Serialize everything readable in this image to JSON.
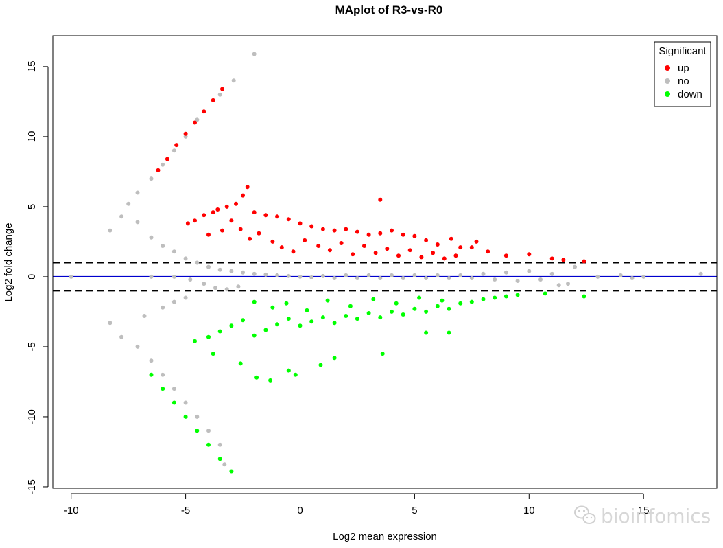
{
  "chart_data": {
    "type": "scatter",
    "title": "MAplot of R3-vs-R0",
    "xlabel": "Log2 mean expression",
    "ylabel": "Log2 fold change",
    "xlim": [
      -10.8,
      18.2
    ],
    "ylim": [
      -15.1,
      17.2
    ],
    "xticks": [
      -10,
      -5,
      0,
      5,
      10,
      15
    ],
    "yticks": [
      -15,
      -10,
      -5,
      0,
      5,
      10,
      15
    ],
    "xtick_labels": [
      "-10",
      "-5",
      "0",
      "5",
      "10",
      "15"
    ],
    "ytick_labels": [
      "-15",
      "-10",
      "-5",
      "0",
      "5",
      "10",
      "15"
    ],
    "grid": false,
    "legend": {
      "title": "Significant",
      "position": "top-right",
      "entries": [
        {
          "label": "up",
          "color": "#ff0000"
        },
        {
          "label": "no",
          "color": "#bebebe"
        },
        {
          "label": "down",
          "color": "#00ff00"
        }
      ]
    },
    "reference_lines": [
      {
        "y": 0,
        "color": "#0000cd",
        "style": "solid"
      },
      {
        "y": 1,
        "color": "#000000",
        "style": "dashed"
      },
      {
        "y": -1,
        "color": "#000000",
        "style": "dashed"
      }
    ],
    "series": [
      {
        "name": "up",
        "color": "#ff0000",
        "points": [
          [
            -2.3,
            6.4
          ],
          [
            3.5,
            5.5
          ],
          [
            -2.5,
            5.8
          ],
          [
            -2.0,
            4.6
          ],
          [
            -1.5,
            4.4
          ],
          [
            -1.0,
            4.3
          ],
          [
            -0.5,
            4.1
          ],
          [
            0.0,
            3.8
          ],
          [
            0.5,
            3.6
          ],
          [
            1.0,
            3.4
          ],
          [
            1.5,
            3.3
          ],
          [
            2.0,
            3.4
          ],
          [
            2.5,
            3.2
          ],
          [
            3.0,
            3.0
          ],
          [
            3.5,
            3.1
          ],
          [
            4.0,
            3.3
          ],
          [
            4.5,
            3.0
          ],
          [
            5.0,
            2.9
          ],
          [
            5.5,
            2.6
          ],
          [
            6.0,
            2.3
          ],
          [
            6.6,
            2.7
          ],
          [
            7.0,
            2.1
          ],
          [
            7.5,
            2.1
          ],
          [
            7.7,
            2.5
          ],
          [
            8.2,
            1.8
          ],
          [
            9.0,
            1.5
          ],
          [
            10.0,
            1.6
          ],
          [
            11.0,
            1.3
          ],
          [
            11.5,
            1.2
          ],
          [
            12.4,
            1.1
          ],
          [
            -1.2,
            2.5
          ],
          [
            -0.8,
            2.1
          ],
          [
            -0.3,
            1.8
          ],
          [
            0.2,
            2.6
          ],
          [
            0.8,
            2.2
          ],
          [
            1.3,
            1.9
          ],
          [
            1.8,
            2.4
          ],
          [
            2.3,
            1.6
          ],
          [
            2.8,
            2.2
          ],
          [
            3.3,
            1.7
          ],
          [
            3.8,
            2.0
          ],
          [
            4.3,
            1.5
          ],
          [
            4.8,
            1.9
          ],
          [
            5.3,
            1.4
          ],
          [
            5.8,
            1.7
          ],
          [
            6.3,
            1.3
          ],
          [
            6.8,
            1.5
          ],
          [
            -1.8,
            3.1
          ],
          [
            -2.2,
            2.7
          ],
          [
            -2.6,
            3.4
          ],
          [
            -3.0,
            4.0
          ],
          [
            -3.4,
            3.3
          ],
          [
            -4.0,
            3.0
          ],
          [
            -4.6,
            4.0
          ],
          [
            -4.2,
            4.4
          ],
          [
            -3.8,
            4.6
          ],
          [
            -3.6,
            4.8
          ],
          [
            -3.2,
            5.0
          ],
          [
            -2.8,
            5.2
          ],
          [
            -4.9,
            3.8
          ],
          [
            -6.2,
            7.6
          ],
          [
            -5.8,
            8.4
          ],
          [
            -5.4,
            9.4
          ],
          [
            -5.0,
            10.2
          ],
          [
            -4.6,
            11.0
          ],
          [
            -4.2,
            11.8
          ],
          [
            -3.8,
            12.6
          ],
          [
            -3.4,
            13.4
          ]
        ]
      },
      {
        "name": "no",
        "color": "#bebebe",
        "points": [
          [
            -2.0,
            15.9
          ],
          [
            -2.9,
            14.0
          ],
          [
            -3.5,
            13.0
          ],
          [
            -4.5,
            11.2
          ],
          [
            -5.0,
            10.0
          ],
          [
            -5.5,
            9.0
          ],
          [
            -6.0,
            8.0
          ],
          [
            -6.5,
            7.0
          ],
          [
            -7.1,
            6.0
          ],
          [
            -7.5,
            5.2
          ],
          [
            -8.3,
            3.3
          ],
          [
            -7.8,
            4.3
          ],
          [
            -7.1,
            3.9
          ],
          [
            -6.5,
            2.8
          ],
          [
            -6.0,
            2.2
          ],
          [
            -5.5,
            1.8
          ],
          [
            -5.0,
            1.3
          ],
          [
            -4.5,
            1.0
          ],
          [
            -4.0,
            0.7
          ],
          [
            -3.5,
            0.5
          ],
          [
            -3.0,
            0.4
          ],
          [
            -2.5,
            0.3
          ],
          [
            -2.0,
            0.2
          ],
          [
            -1.5,
            0.15
          ],
          [
            -1.0,
            0.1
          ],
          [
            -0.5,
            0.05
          ],
          [
            0.0,
            0.0
          ],
          [
            0.5,
            -0.05
          ],
          [
            1.0,
            0.05
          ],
          [
            1.5,
            -0.1
          ],
          [
            2.0,
            0.1
          ],
          [
            2.5,
            -0.1
          ],
          [
            3.0,
            0.1
          ],
          [
            3.5,
            -0.1
          ],
          [
            4.0,
            0.1
          ],
          [
            4.5,
            -0.1
          ],
          [
            5.0,
            0.1
          ],
          [
            5.5,
            -0.1
          ],
          [
            6.0,
            0.1
          ],
          [
            6.5,
            -0.1
          ],
          [
            7.0,
            0.1
          ],
          [
            7.5,
            -0.1
          ],
          [
            8.0,
            0.2
          ],
          [
            8.5,
            -0.2
          ],
          [
            9.0,
            0.3
          ],
          [
            9.5,
            -0.3
          ],
          [
            10.0,
            0.4
          ],
          [
            10.5,
            -0.2
          ],
          [
            11.0,
            0.2
          ],
          [
            11.3,
            -0.6
          ],
          [
            11.7,
            -0.5
          ],
          [
            12.0,
            0.7
          ],
          [
            13.0,
            0.0
          ],
          [
            14.0,
            0.1
          ],
          [
            14.5,
            -0.1
          ],
          [
            15.0,
            0.0
          ],
          [
            17.5,
            0.2
          ],
          [
            -10.0,
            0.0
          ],
          [
            -6.5,
            0.0
          ],
          [
            -5.5,
            0.0
          ],
          [
            -4.8,
            -0.2
          ],
          [
            -4.2,
            -0.5
          ],
          [
            -3.7,
            -0.8
          ],
          [
            -3.2,
            -0.9
          ],
          [
            -2.7,
            -0.7
          ],
          [
            -8.3,
            -3.3
          ],
          [
            -7.8,
            -4.3
          ],
          [
            -7.1,
            -5.0
          ],
          [
            -6.5,
            -6.0
          ],
          [
            -6.0,
            -7.0
          ],
          [
            -5.5,
            -8.0
          ],
          [
            -5.0,
            -9.0
          ],
          [
            -4.5,
            -10.0
          ],
          [
            -4.0,
            -11.0
          ],
          [
            -3.5,
            -12.0
          ],
          [
            -3.3,
            -13.4
          ],
          [
            -6.8,
            -2.8
          ],
          [
            -6.0,
            -2.2
          ],
          [
            -5.5,
            -1.8
          ],
          [
            -5.0,
            -1.5
          ]
        ]
      },
      {
        "name": "down",
        "color": "#00ff00",
        "points": [
          [
            -1.3,
            -7.4
          ],
          [
            -1.9,
            -7.2
          ],
          [
            -0.2,
            -7.0
          ],
          [
            -0.5,
            -6.7
          ],
          [
            0.9,
            -6.3
          ],
          [
            1.5,
            -5.8
          ],
          [
            3.6,
            -5.5
          ],
          [
            5.5,
            -4.0
          ],
          [
            6.5,
            -4.0
          ],
          [
            -2.6,
            -6.2
          ],
          [
            -3.8,
            -5.5
          ],
          [
            -4.6,
            -4.6
          ],
          [
            -4.0,
            -4.3
          ],
          [
            -3.5,
            -3.9
          ],
          [
            -3.0,
            -3.5
          ],
          [
            -2.5,
            -3.1
          ],
          [
            -2.0,
            -4.2
          ],
          [
            -1.5,
            -3.8
          ],
          [
            -1.0,
            -3.4
          ],
          [
            -0.5,
            -3.0
          ],
          [
            0.0,
            -3.5
          ],
          [
            0.5,
            -3.2
          ],
          [
            1.0,
            -2.9
          ],
          [
            1.5,
            -3.3
          ],
          [
            2.0,
            -2.8
          ],
          [
            2.5,
            -3.0
          ],
          [
            3.0,
            -2.6
          ],
          [
            3.5,
            -2.9
          ],
          [
            4.0,
            -2.5
          ],
          [
            4.5,
            -2.7
          ],
          [
            5.0,
            -2.3
          ],
          [
            5.5,
            -2.5
          ],
          [
            6.0,
            -2.1
          ],
          [
            6.5,
            -2.3
          ],
          [
            7.0,
            -1.9
          ],
          [
            7.5,
            -1.8
          ],
          [
            8.0,
            -1.6
          ],
          [
            8.5,
            -1.5
          ],
          [
            9.0,
            -1.4
          ],
          [
            9.5,
            -1.3
          ],
          [
            10.7,
            -1.2
          ],
          [
            12.4,
            -1.4
          ],
          [
            -2.0,
            -1.8
          ],
          [
            -1.2,
            -2.2
          ],
          [
            -0.6,
            -1.9
          ],
          [
            0.3,
            -2.4
          ],
          [
            1.2,
            -1.7
          ],
          [
            2.2,
            -2.1
          ],
          [
            3.2,
            -1.6
          ],
          [
            4.2,
            -1.9
          ],
          [
            5.2,
            -1.5
          ],
          [
            6.2,
            -1.7
          ],
          [
            -6.5,
            -7.0
          ],
          [
            -6.0,
            -8.0
          ],
          [
            -5.5,
            -9.0
          ],
          [
            -5.0,
            -10.0
          ],
          [
            -4.5,
            -11.0
          ],
          [
            -4.0,
            -12.0
          ],
          [
            -3.5,
            -13.0
          ],
          [
            -3.0,
            -13.9
          ]
        ]
      }
    ]
  },
  "watermark": {
    "text": "bioinfomics",
    "icon": "wechat-icon"
  }
}
